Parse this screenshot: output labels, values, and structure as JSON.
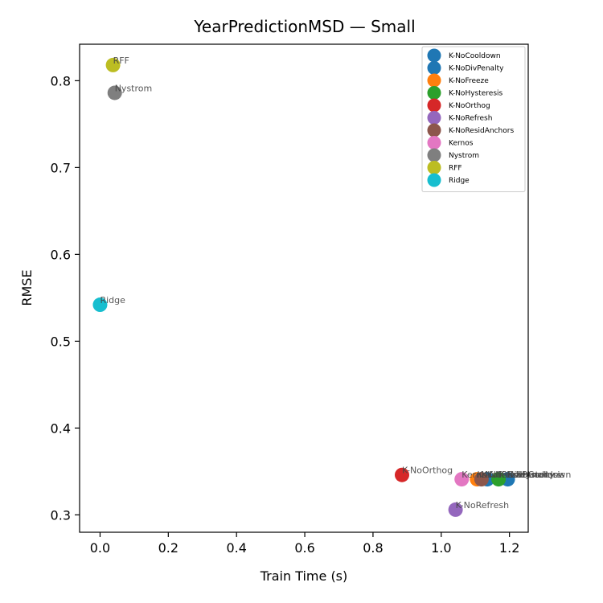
{
  "chart_data": {
    "type": "scatter",
    "title": "YearPredictionMSD — Small",
    "xlabel": "Train Time (s)",
    "ylabel": "RMSE",
    "xlim": [
      -0.06,
      1.255
    ],
    "ylim": [
      0.28,
      0.842
    ],
    "xticks": [
      0.0,
      0.2,
      0.4,
      0.6,
      0.8,
      1.0,
      1.2
    ],
    "xtick_labels": [
      "0.0",
      "0.2",
      "0.4",
      "0.6",
      "0.8",
      "1.0",
      "1.2"
    ],
    "yticks": [
      0.3,
      0.4,
      0.5,
      0.6,
      0.7,
      0.8
    ],
    "ytick_labels": [
      "0.3",
      "0.4",
      "0.5",
      "0.6",
      "0.7",
      "0.8"
    ],
    "grid": false,
    "legend_position": "top-right",
    "series": [
      {
        "name": "K-NoCooldown",
        "color": "#1f77b4",
        "x": 1.195,
        "y": 0.341
      },
      {
        "name": "K-NoDivPenalty",
        "color": "#1f77b4",
        "x": 1.135,
        "y": 0.341
      },
      {
        "name": "K-NoFreeze",
        "color": "#ff7f0e",
        "x": 1.105,
        "y": 0.341
      },
      {
        "name": "K-NoHysteresis",
        "color": "#2ca02c",
        "x": 1.168,
        "y": 0.341
      },
      {
        "name": "K-NoOrthog",
        "color": "#d62728",
        "x": 0.885,
        "y": 0.346
      },
      {
        "name": "K-NoRefresh",
        "color": "#9467bd",
        "x": 1.042,
        "y": 0.306
      },
      {
        "name": "K-NoResidAnchors",
        "color": "#8c564b",
        "x": 1.118,
        "y": 0.341
      },
      {
        "name": "Kernos",
        "color": "#e377c2",
        "x": 1.06,
        "y": 0.341
      },
      {
        "name": "Nystrom",
        "color": "#7f7f7f",
        "x": 0.043,
        "y": 0.786
      },
      {
        "name": "RFF",
        "color": "#bcbd22",
        "x": 0.038,
        "y": 0.818
      },
      {
        "name": "Ridge",
        "color": "#17becf",
        "x": 0.0,
        "y": 0.542
      }
    ]
  }
}
